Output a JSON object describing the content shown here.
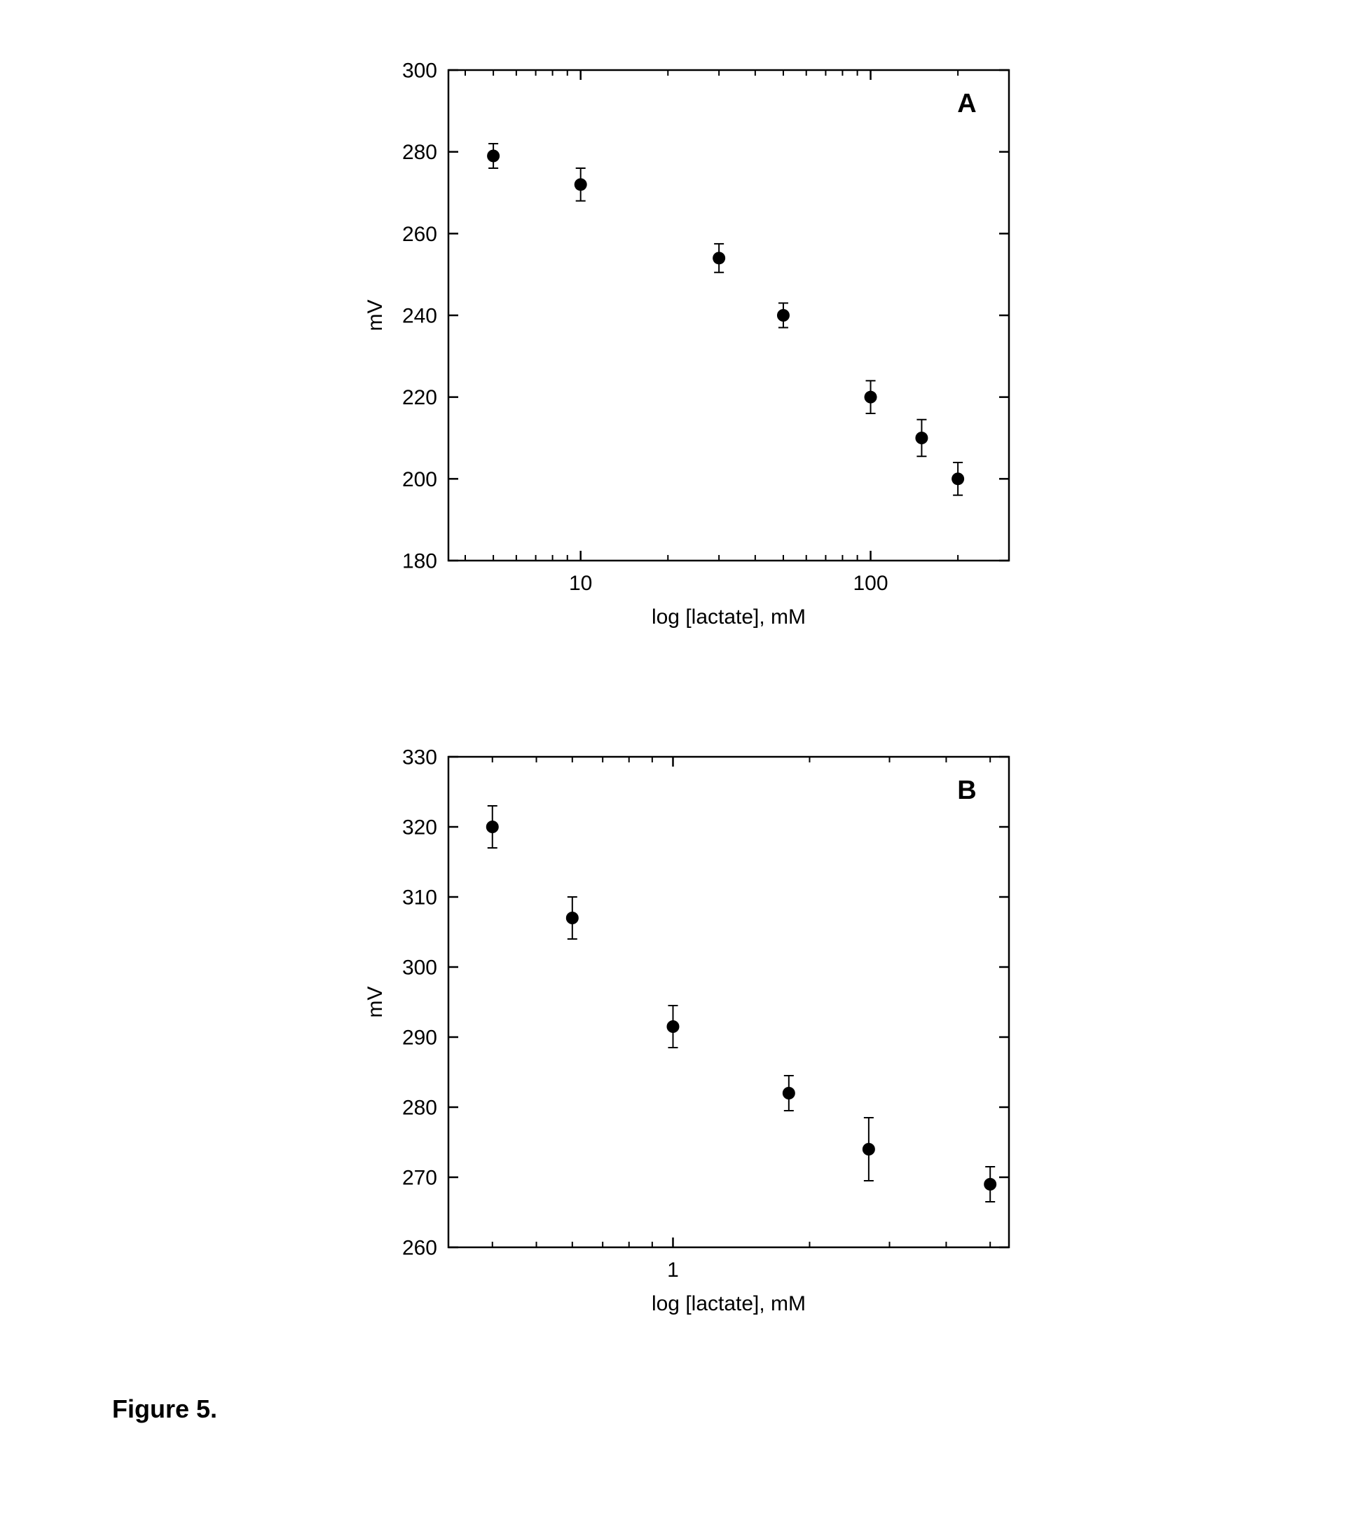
{
  "caption": "Figure 5.",
  "caption_fontsize": 36,
  "caption_fontweight": "bold",
  "chartA": {
    "type": "scatter",
    "panel_label": "A",
    "panel_label_fontsize": 38,
    "panel_label_fontweight": "bold",
    "xlabel": "log [lactate], mM",
    "ylabel": "mV",
    "label_fontsize": 30,
    "tick_fontsize": 30,
    "xscale": "log",
    "xlim": [
      3.5,
      300
    ],
    "ylim": [
      180,
      300
    ],
    "yticks": [
      180,
      200,
      220,
      240,
      260,
      280,
      300
    ],
    "xticks_major": [
      10,
      100
    ],
    "xticks_minor": [
      4,
      5,
      6,
      7,
      8,
      9,
      20,
      30,
      40,
      50,
      60,
      70,
      80,
      90,
      200,
      300
    ],
    "marker_color": "#000000",
    "marker_radius": 9,
    "errorbar_color": "#000000",
    "errorbar_width": 2,
    "cap_halfwidth": 7,
    "axis_color": "#000000",
    "axis_width": 2.5,
    "tick_len_major": 14,
    "tick_len_minor": 8,
    "background_color": "#ffffff",
    "points": [
      {
        "x": 5,
        "y": 279,
        "err": 3
      },
      {
        "x": 10,
        "y": 272,
        "err": 4
      },
      {
        "x": 30,
        "y": 254,
        "err": 3.5
      },
      {
        "x": 50,
        "y": 240,
        "err": 3
      },
      {
        "x": 100,
        "y": 220,
        "err": 4
      },
      {
        "x": 150,
        "y": 210,
        "err": 4.5
      },
      {
        "x": 200,
        "y": 200,
        "err": 4
      }
    ]
  },
  "chartB": {
    "type": "scatter",
    "panel_label": "B",
    "panel_label_fontsize": 38,
    "panel_label_fontweight": "bold",
    "xlabel": "log [lactate], mM",
    "ylabel": "mV",
    "label_fontsize": 30,
    "tick_fontsize": 30,
    "xscale": "log",
    "xlim": [
      0.32,
      5.5
    ],
    "ylim": [
      260,
      330
    ],
    "yticks": [
      260,
      270,
      280,
      290,
      300,
      310,
      320,
      330
    ],
    "xticks_major": [
      1
    ],
    "xticks_minor": [
      0.4,
      0.5,
      0.6,
      0.7,
      0.8,
      0.9,
      2,
      3,
      4,
      5
    ],
    "marker_color": "#000000",
    "marker_radius": 9,
    "errorbar_color": "#000000",
    "errorbar_width": 2,
    "cap_halfwidth": 7,
    "axis_color": "#000000",
    "axis_width": 2.5,
    "tick_len_major": 14,
    "tick_len_minor": 8,
    "background_color": "#ffffff",
    "points": [
      {
        "x": 0.4,
        "y": 320,
        "err": 3
      },
      {
        "x": 0.6,
        "y": 307,
        "err": 3
      },
      {
        "x": 1.0,
        "y": 291.5,
        "err": 3
      },
      {
        "x": 1.8,
        "y": 282,
        "err": 2.5
      },
      {
        "x": 2.7,
        "y": 274,
        "err": 4.5
      },
      {
        "x": 5.0,
        "y": 269,
        "err": 2.5
      }
    ]
  }
}
